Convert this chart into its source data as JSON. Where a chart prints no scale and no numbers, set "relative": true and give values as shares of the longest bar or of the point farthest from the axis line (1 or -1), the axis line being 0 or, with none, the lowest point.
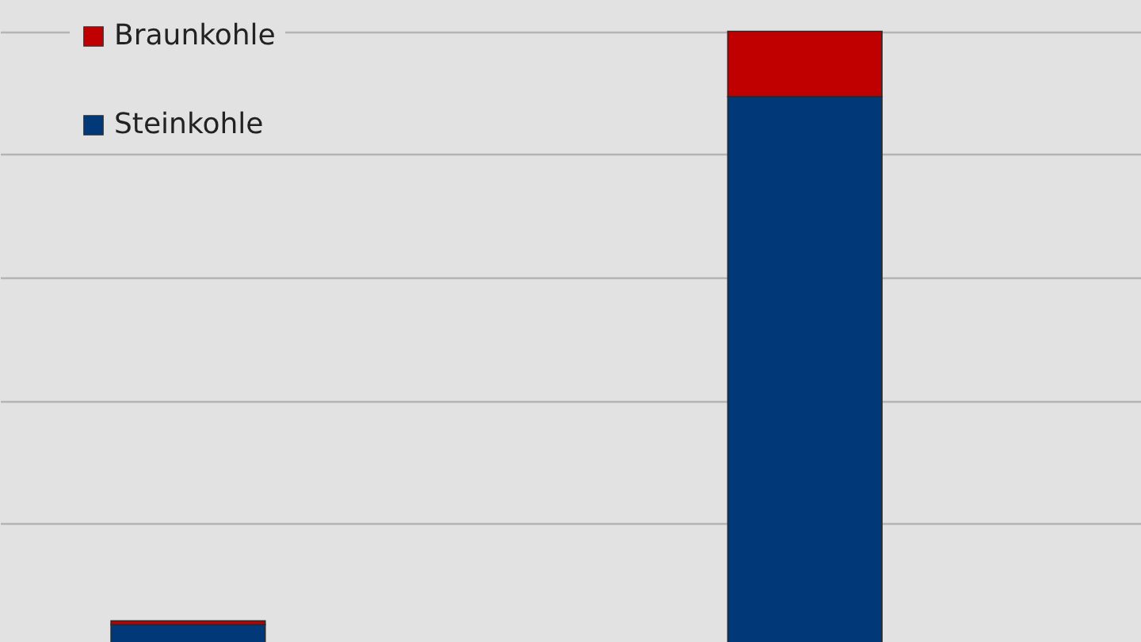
{
  "chart_data": {
    "type": "bar",
    "stacked": true,
    "relative": true,
    "grid": true,
    "legend": "top left",
    "categories": [
      null,
      null
    ],
    "series": [
      {
        "name": "Steinkohle",
        "color": "#003878",
        "values": [
          0.036,
          0.894
        ]
      },
      {
        "name": "Braunkohle",
        "color": "#c00000",
        "values": [
          0.006,
          0.106
        ]
      }
    ]
  }
}
